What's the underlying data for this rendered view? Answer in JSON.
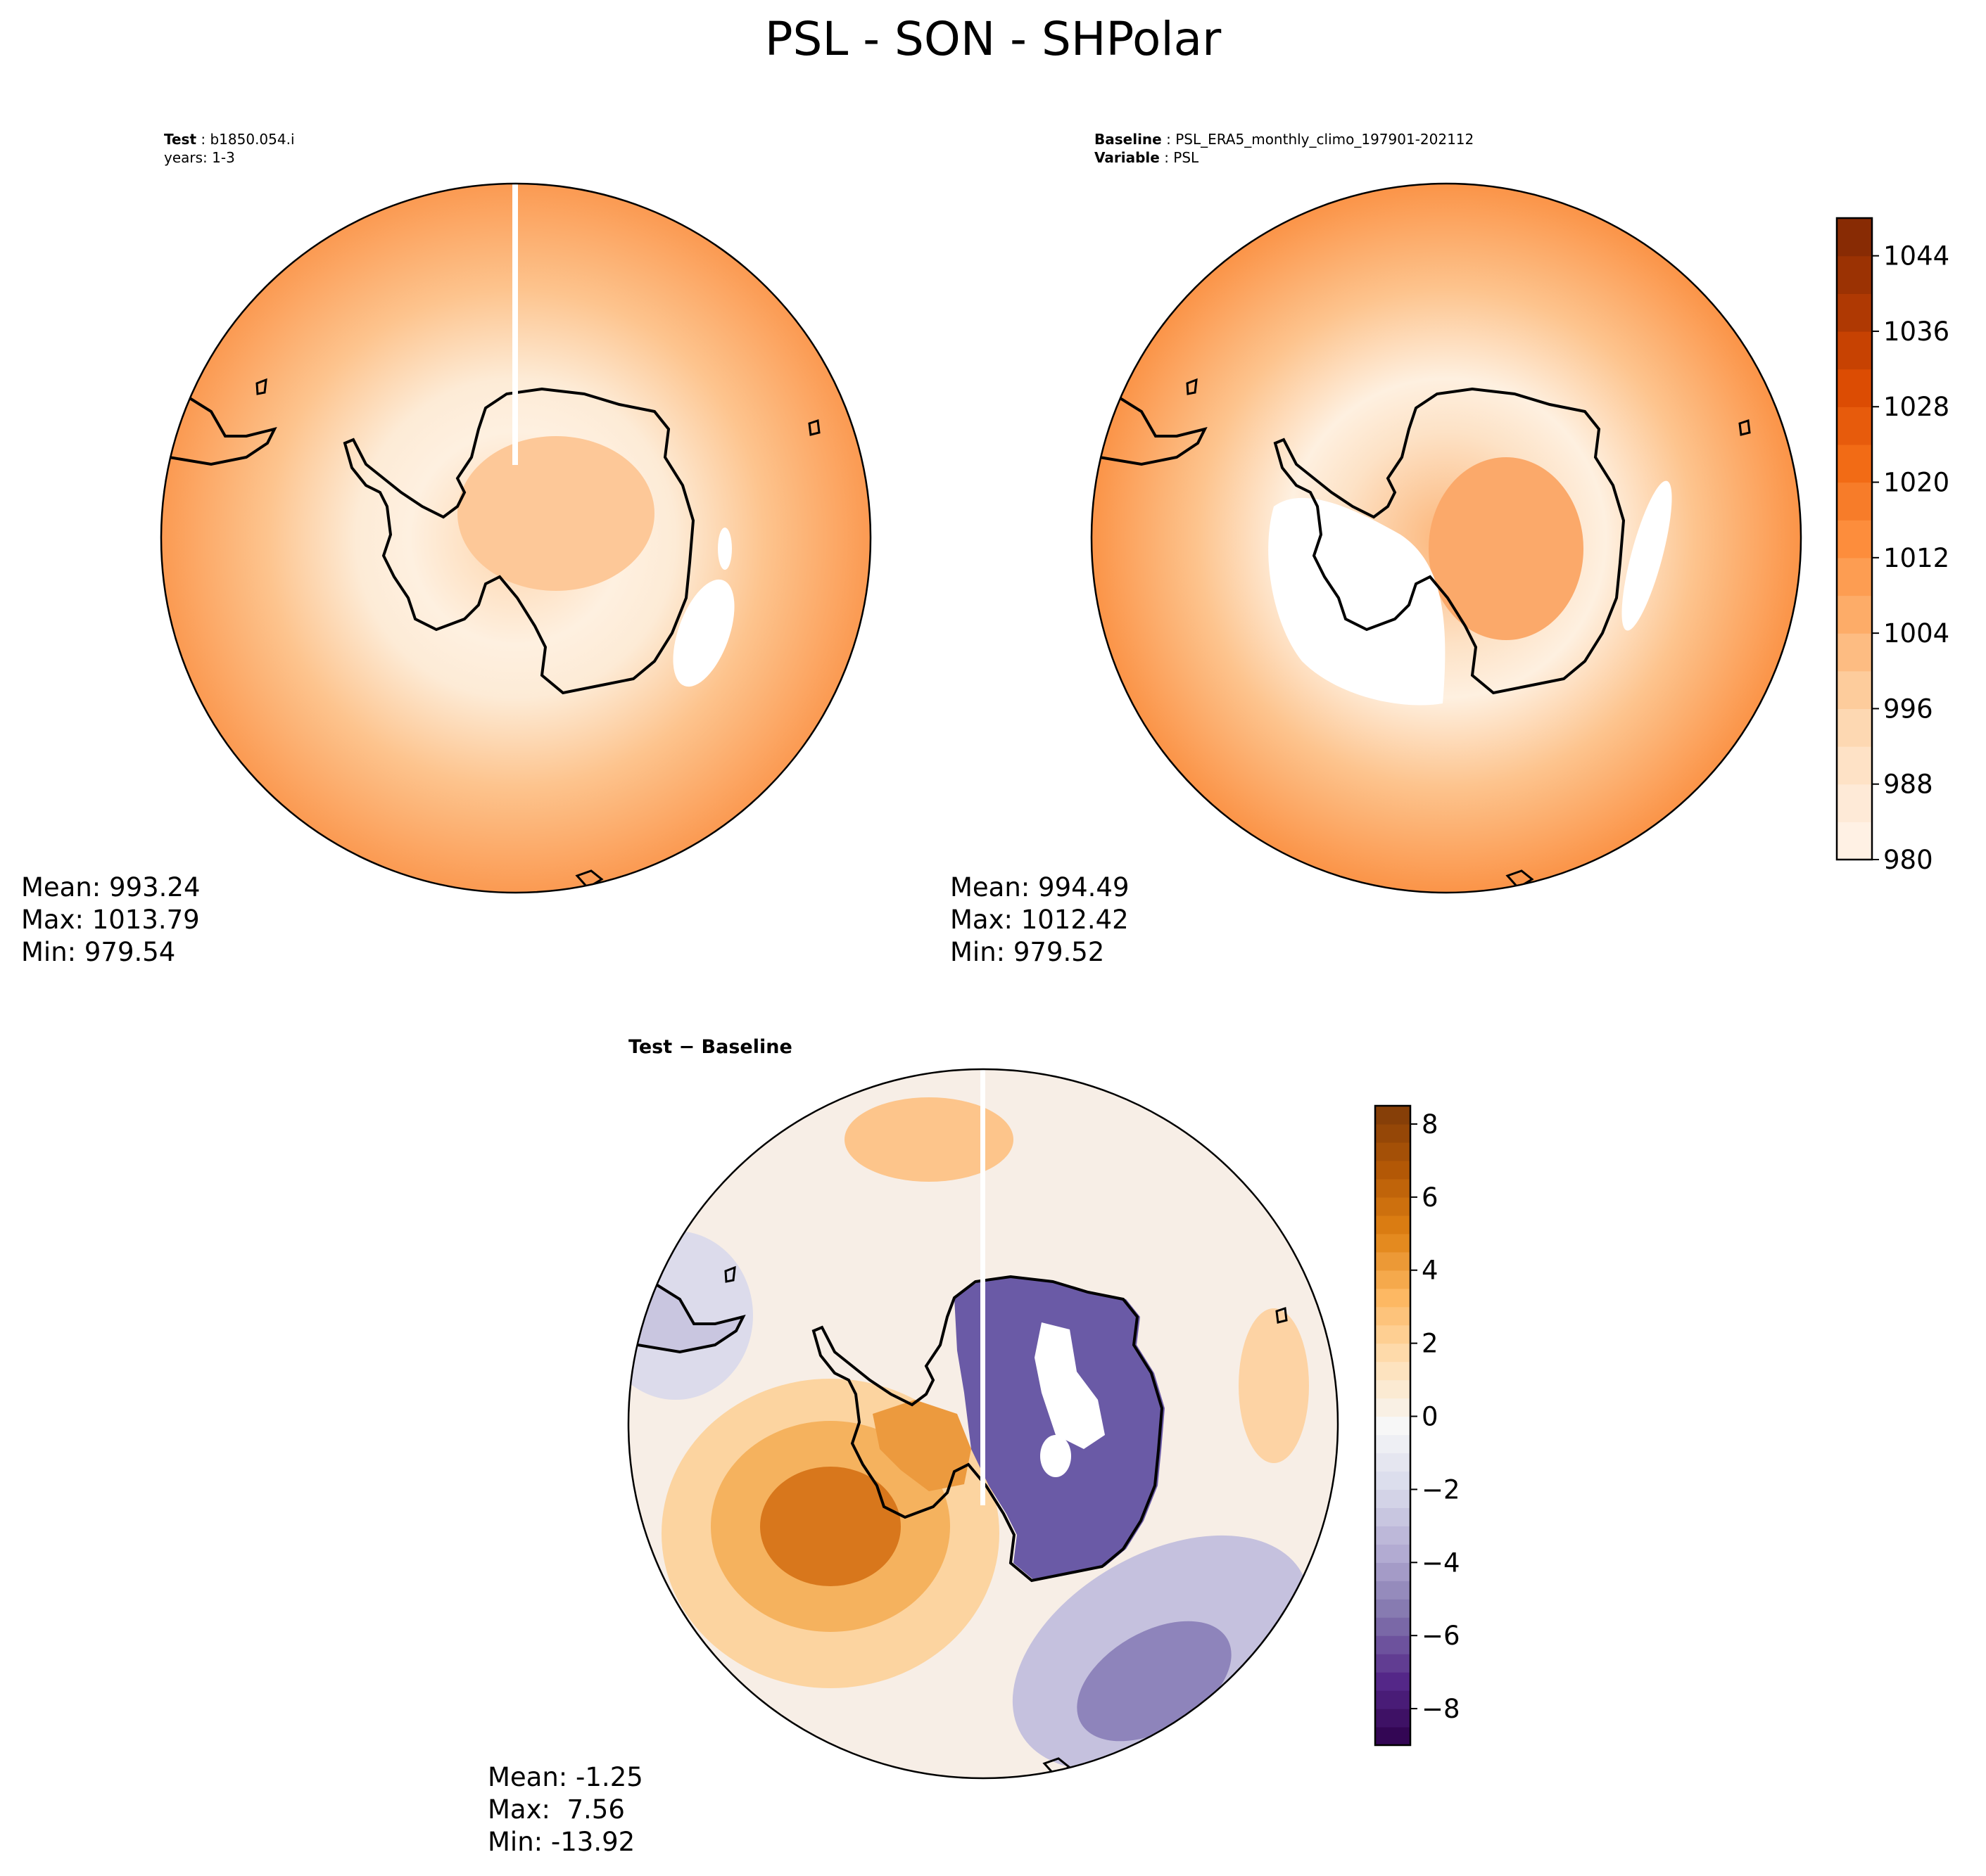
{
  "figure_title": "PSL - SON - SHPolar",
  "colors": {
    "oranges": [
      "#fff5eb",
      "#fee6ce",
      "#fdd0a2",
      "#fdae6b",
      "#fd8d3c",
      "#f16913",
      "#d94801",
      "#a63603",
      "#7f2704"
    ],
    "diverging": [
      "#2d004b",
      "#542788",
      "#8073ac",
      "#b2abd2",
      "#d8daeb",
      "#f7f7f7",
      "#fee0b6",
      "#fdb863",
      "#e08214",
      "#b35806",
      "#7f3b08"
    ],
    "coast": "#000000",
    "gap": "#ffffff"
  },
  "panels": {
    "test": {
      "header_label": "Test",
      "header_sep": " : ",
      "header_value": "b1850.054.i",
      "subheader": "years: 1-3",
      "stats": {
        "mean": "Mean: 993.24",
        "max": "Max: 1013.79",
        "min": "Min: 979.54"
      }
    },
    "baseline": {
      "header_label": "Baseline",
      "header_sep": " : ",
      "header_value": "PSL_ERA5_monthly_climo_197901-202112",
      "subheader_label": "Variable",
      "subheader_sep": " : ",
      "subheader_value": "PSL",
      "stats": {
        "mean": "Mean: 994.49",
        "max": "Max: 1012.42",
        "min": "Min: 979.52"
      }
    },
    "diff": {
      "header": "Test − Baseline",
      "stats": {
        "mean": "Mean: -1.25",
        "max": "Max:  7.56",
        "min": "Min: -13.92"
      }
    }
  },
  "colorbars": {
    "psl": {
      "range": [
        980,
        1048
      ],
      "step": 4,
      "tick_values": [
        980,
        988,
        996,
        1004,
        1012,
        1020,
        1028,
        1036,
        1044
      ],
      "ticks": [
        "980",
        "988",
        "996",
        "1004",
        "1012",
        "1020",
        "1028",
        "1036",
        "1044"
      ]
    },
    "diff": {
      "range": [
        -9,
        8.5
      ],
      "step": 0.5,
      "tick_values": [
        -8,
        -6,
        -4,
        -2,
        0,
        2,
        4,
        6,
        8
      ],
      "ticks": [
        "−8",
        "−6",
        "−4",
        "−2",
        "0",
        "2",
        "4",
        "6",
        "8"
      ]
    }
  }
}
